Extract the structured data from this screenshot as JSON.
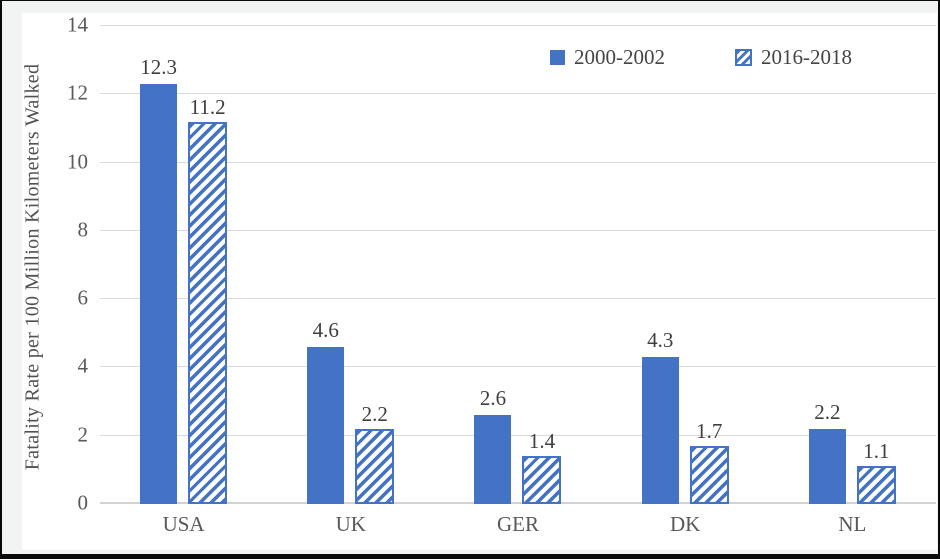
{
  "chart_data": {
    "type": "bar",
    "title": "",
    "xlabel": "",
    "ylabel": "Fatality Rate per 100 Million Kilometers Walked",
    "categories": [
      "USA",
      "UK",
      "GER",
      "DK",
      "NL"
    ],
    "series": [
      {
        "name": "2000-2002",
        "style": "solid",
        "values": [
          12.3,
          4.6,
          2.6,
          4.3,
          2.2
        ]
      },
      {
        "name": "2016-2018",
        "style": "hatched",
        "values": [
          11.2,
          2.2,
          1.4,
          1.7,
          1.1
        ]
      }
    ],
    "ylim": [
      0,
      14
    ],
    "yticks": [
      0,
      2,
      4,
      6,
      8,
      10,
      12,
      14
    ],
    "grid": true,
    "data_labels_shown": true,
    "legend_position": "top-right",
    "colors": {
      "bar_blue": "#4472C4",
      "hatch_background": "#FFFFFF",
      "gridline": "#DADADA",
      "axis_line": "#D2D2D2",
      "tick_text": "#595959",
      "value_text": "#3F3F3F",
      "outer_background": "#F2F3F3",
      "plot_background": "#FFFFFF",
      "border": "#0A0A0A"
    }
  }
}
